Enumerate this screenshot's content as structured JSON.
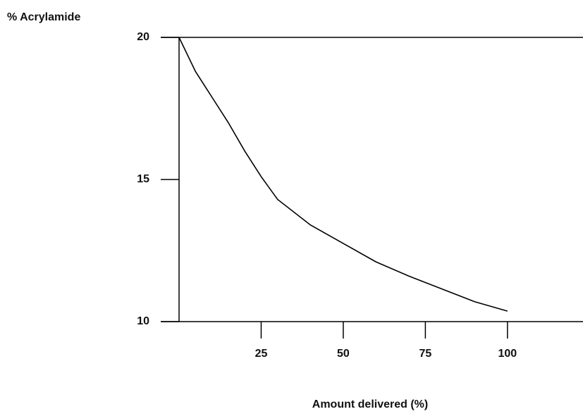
{
  "chart_data": {
    "type": "line",
    "ylabel": "% Acrylamide",
    "xlabel": "Amount delivered (%)",
    "x": [
      0,
      5,
      10,
      15,
      20,
      25,
      30,
      40,
      50,
      60,
      70,
      80,
      90,
      100
    ],
    "values": [
      20,
      18.8,
      17.9,
      17.0,
      16.0,
      15.1,
      14.3,
      13.4,
      12.75,
      12.1,
      11.6,
      11.15,
      10.7,
      10.37
    ],
    "color": "#000000",
    "xlim": [
      0,
      123
    ],
    "xticks": [
      25,
      50,
      75,
      100
    ],
    "ylim": [
      10,
      20
    ],
    "yticks": [
      10,
      15,
      20
    ]
  }
}
